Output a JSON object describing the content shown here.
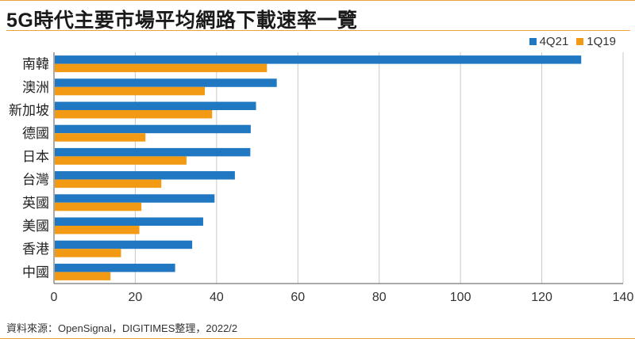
{
  "title": "5G時代主要市場平均網路下載速率一覽",
  "source": "資料來源：OpenSignal，DIGITIMES整理，2022/2",
  "colors": {
    "frame": "#e8a23a",
    "text": "#1a1a1a"
  },
  "chart_data": {
    "type": "bar",
    "orientation": "horizontal",
    "categories": [
      "南韓",
      "澳洲",
      "新加坡",
      "德國",
      "日本",
      "台灣",
      "英國",
      "美國",
      "香港",
      "中國"
    ],
    "series": [
      {
        "name": "4Q21",
        "color": "#1f78c1",
        "values": [
          129.7,
          54.8,
          49.7,
          48.4,
          48.3,
          44.5,
          39.5,
          36.7,
          34.0,
          29.8
        ]
      },
      {
        "name": "1Q19",
        "color": "#f39a15",
        "values": [
          52.4,
          37.1,
          38.9,
          22.5,
          32.6,
          26.4,
          21.5,
          21.0,
          16.5,
          13.9
        ]
      }
    ],
    "xlim": [
      0,
      140
    ],
    "xticks": [
      0,
      20,
      40,
      60,
      80,
      100,
      120,
      140
    ],
    "grid": true,
    "legend": "top-right",
    "xlabel": "",
    "ylabel": ""
  }
}
